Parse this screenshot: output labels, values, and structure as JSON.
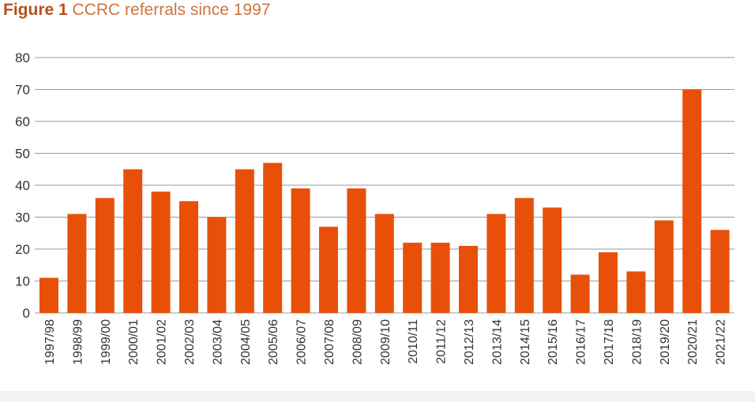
{
  "figure": {
    "label": "Figure 1",
    "caption": "CCRC referrals since 1997"
  },
  "colors": {
    "bar": "#e8500a",
    "grid": "#9a9a9a",
    "text": "#333333",
    "title_label": "#b5501c",
    "title_text": "#c9763f"
  },
  "chart_data": {
    "type": "bar",
    "title": "CCRC referrals since 1997",
    "xlabel": "",
    "ylabel": "",
    "ylim": [
      0,
      80
    ],
    "yticks": [
      0,
      10,
      20,
      30,
      40,
      50,
      60,
      70,
      80
    ],
    "grid": true,
    "categories": [
      "1997/98",
      "1998/99",
      "1999/00",
      "2000/01",
      "2001/02",
      "2002/03",
      "2003/04",
      "2004/05",
      "2005/06",
      "2006/07",
      "2007/08",
      "2008/09",
      "2009/10",
      "2010/11",
      "2011/12",
      "2012/13",
      "2013/14",
      "2014/15",
      "2015/16",
      "2016/17",
      "2017/18",
      "2018/19",
      "2019/20",
      "2020/21",
      "2021/22"
    ],
    "values": [
      11,
      31,
      36,
      45,
      38,
      35,
      30,
      45,
      47,
      39,
      27,
      39,
      31,
      22,
      22,
      21,
      31,
      36,
      33,
      12,
      19,
      13,
      29,
      70,
      26
    ]
  }
}
